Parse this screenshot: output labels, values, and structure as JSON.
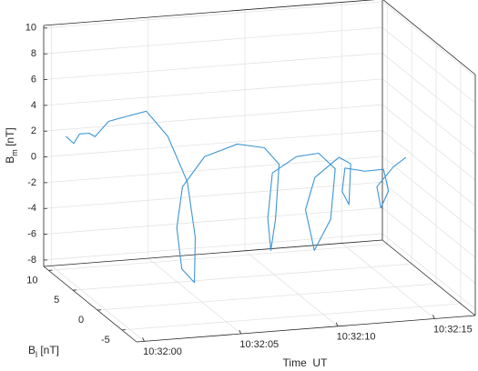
{
  "chart_data": {
    "type": "line3d",
    "xlabel": "Time  UT",
    "ylabel": "Bl [nT]",
    "zlabel": "Bm [nT]",
    "xlim": [
      37919.6,
      37937.1
    ],
    "ylim": [
      -8,
      11
    ],
    "zlim": [
      -8.5,
      10.2
    ],
    "xticks": [
      {
        "value": 37920,
        "label": "10:32:00"
      },
      {
        "value": 37925,
        "label": "10:32:05"
      },
      {
        "value": 37930,
        "label": "10:32:10"
      },
      {
        "value": 37935,
        "label": "10:32:15"
      }
    ],
    "yticks": [
      -5,
      0,
      5,
      10
    ],
    "zticks": [
      -8,
      -6,
      -4,
      -2,
      0,
      2,
      4,
      6,
      8,
      10
    ],
    "grid": true,
    "series": [
      {
        "color": "#3d96d3",
        "x": [
          37920.5,
          37920.9,
          37921.2,
          37921.7,
          37922.0,
          37922.7,
          37923.7,
          37924.4,
          37925.0,
          37925.0,
          37924.4,
          37923.6,
          37923.2,
          37923.7,
          37925.0,
          37926.9,
          37929.1,
          37930.5,
          37930.5,
          37928.8,
          37927.8,
          37928.4,
          37929.9,
          37931.9,
          37933.3,
          37933.4,
          37931.9,
          37930.3,
          37930.6,
          37932.1,
          37934.1,
          37934.2,
          37933.1,
          37933.0,
          37933.9,
          37935.2,
          37936.4,
          37935.9,
          37935.0,
          37935.3,
          37936.4,
          37936.8
        ],
        "y": [
          10,
          10,
          10,
          10,
          10,
          10,
          10,
          9,
          7,
          3,
          -1,
          -4,
          -3,
          0,
          4,
          7,
          9,
          9,
          6,
          0,
          -3,
          0,
          5,
          8,
          9,
          6,
          1,
          -2,
          1,
          5,
          8,
          6,
          2,
          3,
          6,
          7,
          8,
          5,
          3,
          5,
          6,
          5
        ],
        "z": [
          1.8,
          1.2,
          1.9,
          1.9,
          1.6,
          2.7,
          3.0,
          3.6,
          2.2,
          -0.1,
          -3.1,
          -5.6,
          -4.8,
          -2.6,
          -0.8,
          0.4,
          0.5,
          0.05,
          -0.3,
          -2.5,
          -3.9,
          -2.4,
          -0.6,
          -0.5,
          -0.7,
          -1.0,
          -3.2,
          -4.5,
          -2.3,
          -1.2,
          -0.8,
          -0.7,
          -2.5,
          -1.8,
          -1.0,
          -1.7,
          -2.0,
          -2.7,
          -3.3,
          -2.3,
          -1.2,
          -0.2
        ]
      }
    ]
  }
}
